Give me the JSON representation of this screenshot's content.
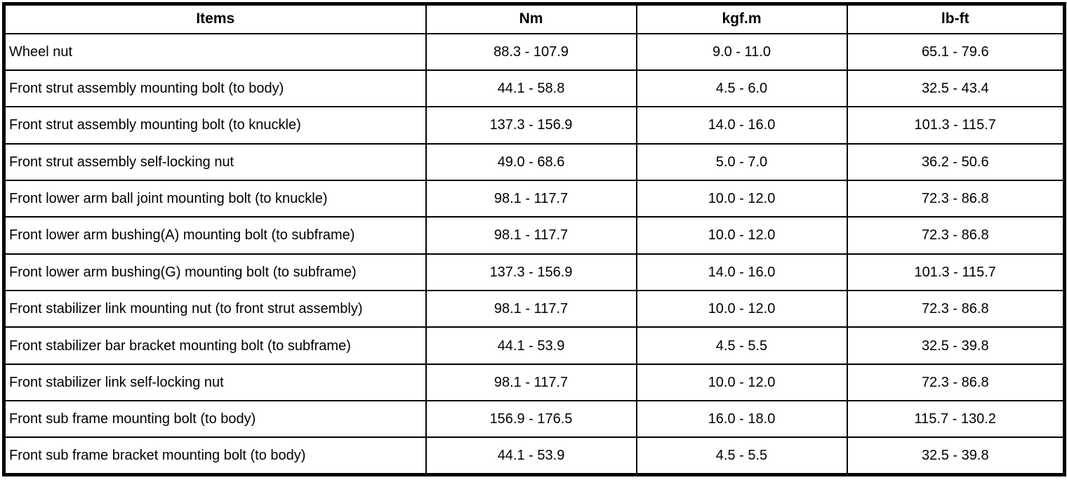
{
  "table": {
    "headers": {
      "items": "Items",
      "nm": "Nm",
      "kgfm": "kgf.m",
      "lbft": "lb-ft"
    },
    "border_color": "#000000",
    "background_color": "#ffffff"
  },
  "rows": [
    {
      "item": "Wheel nut",
      "nm": "88.3 - 107.9",
      "kgfm": "9.0 - 11.0",
      "lbft": "65.1 - 79.6"
    },
    {
      "item": "Front strut assembly mounting bolt (to body)",
      "nm": "44.1 - 58.8",
      "kgfm": "4.5 - 6.0",
      "lbft": "32.5 - 43.4"
    },
    {
      "item": "Front strut assembly mounting bolt (to knuckle)",
      "nm": "137.3 - 156.9",
      "kgfm": "14.0 - 16.0",
      "lbft": "101.3 - 115.7"
    },
    {
      "item": "Front strut assembly self-locking nut",
      "nm": "49.0 - 68.6",
      "kgfm": "5.0 - 7.0",
      "lbft": "36.2 - 50.6"
    },
    {
      "item": "Front lower arm ball joint mounting bolt (to knuckle)",
      "nm": "98.1 - 117.7",
      "kgfm": "10.0 - 12.0",
      "lbft": "72.3 - 86.8"
    },
    {
      "item": "Front lower arm bushing(A) mounting bolt (to subframe)",
      "nm": "98.1 - 117.7",
      "kgfm": "10.0 - 12.0",
      "lbft": "72.3 - 86.8"
    },
    {
      "item": "Front lower arm bushing(G) mounting bolt (to subframe)",
      "nm": "137.3 - 156.9",
      "kgfm": "14.0 - 16.0",
      "lbft": "101.3 - 115.7"
    },
    {
      "item": "Front stabilizer link mounting nut (to front strut assembly)",
      "nm": "98.1 - 117.7",
      "kgfm": "10.0 - 12.0",
      "lbft": "72.3 - 86.8"
    },
    {
      "item": "Front stabilizer bar bracket mounting bolt (to subframe)",
      "nm": "44.1 - 53.9",
      "kgfm": "4.5 - 5.5",
      "lbft": "32.5 - 39.8"
    },
    {
      "item": "Front stabilizer link self-locking nut",
      "nm": "98.1 - 117.7",
      "kgfm": "10.0 - 12.0",
      "lbft": "72.3 - 86.8"
    },
    {
      "item": "Front sub frame mounting bolt (to body)",
      "nm": "156.9 - 176.5",
      "kgfm": "16.0 - 18.0",
      "lbft": "115.7 - 130.2"
    },
    {
      "item": "Front sub frame bracket mounting bolt (to body)",
      "nm": "44.1 - 53.9",
      "kgfm": "4.5 - 5.5",
      "lbft": "32.5 - 39.8"
    }
  ]
}
